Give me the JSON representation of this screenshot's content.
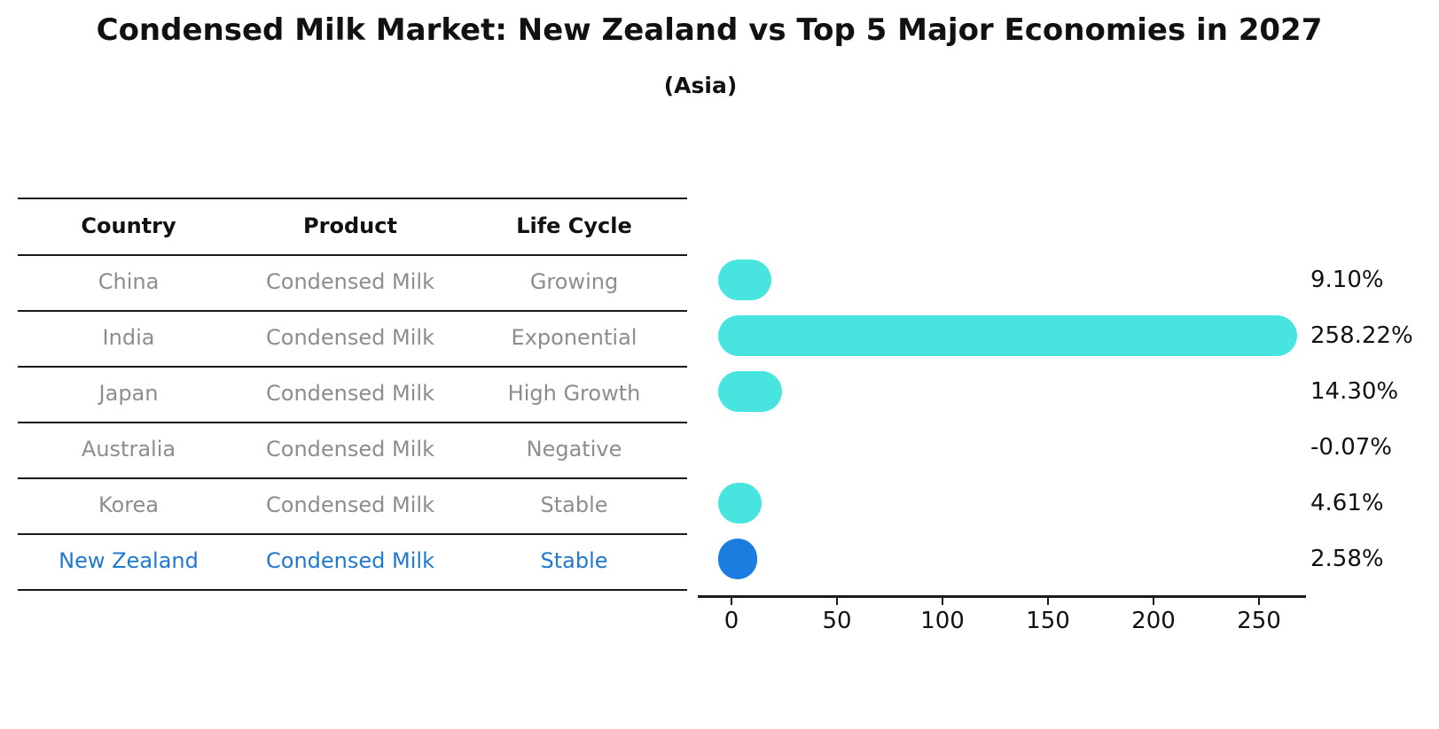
{
  "title": "Condensed Milk Market: New Zealand vs Top 5 Major Economies in 2027",
  "subtitle": "(Asia)",
  "table": {
    "headers": [
      "Country",
      "Product",
      "Life Cycle"
    ],
    "rows": [
      {
        "country": "China",
        "product": "Condensed Milk",
        "life_cycle": "Growing",
        "highlight": false
      },
      {
        "country": "India",
        "product": "Condensed Milk",
        "life_cycle": "Exponential",
        "highlight": false
      },
      {
        "country": "Japan",
        "product": "Condensed Milk",
        "life_cycle": "High Growth",
        "highlight": false
      },
      {
        "country": "Australia",
        "product": "Condensed Milk",
        "life_cycle": "Negative",
        "highlight": false
      },
      {
        "country": "Korea",
        "product": "Condensed Milk",
        "life_cycle": "Stable",
        "highlight": false
      },
      {
        "country": "New Zealand",
        "product": "Condensed Milk",
        "life_cycle": "Stable",
        "highlight": true
      }
    ]
  },
  "chart_data": {
    "type": "bar",
    "orientation": "horizontal",
    "title": "Condensed Milk Market: New Zealand vs Top 5 Major Economies in 2027",
    "subtitle": "(Asia)",
    "categories": [
      "China",
      "India",
      "Japan",
      "Australia",
      "Korea",
      "New Zealand"
    ],
    "values": [
      9.1,
      258.22,
      14.3,
      -0.07,
      4.61,
      2.58
    ],
    "value_labels": [
      "9.10%",
      "258.22%",
      "14.30%",
      "-0.07%",
      "4.61%",
      "2.58%"
    ],
    "x_ticks": [
      0,
      50,
      100,
      150,
      200,
      250
    ],
    "xlim": [
      -16,
      272
    ],
    "xlabel": "",
    "ylabel": "",
    "grid": false,
    "legend": false,
    "bar_color": "#48E5E0",
    "highlight_color": "#1C7DE0",
    "highlight_index": 5
  },
  "colors": {
    "bar_cyan": "#48E5E0",
    "bar_blue": "#1C7DE0",
    "text_blue": "#1F78D1",
    "table_gray": "#8D8D8D",
    "ink": "#111111"
  }
}
